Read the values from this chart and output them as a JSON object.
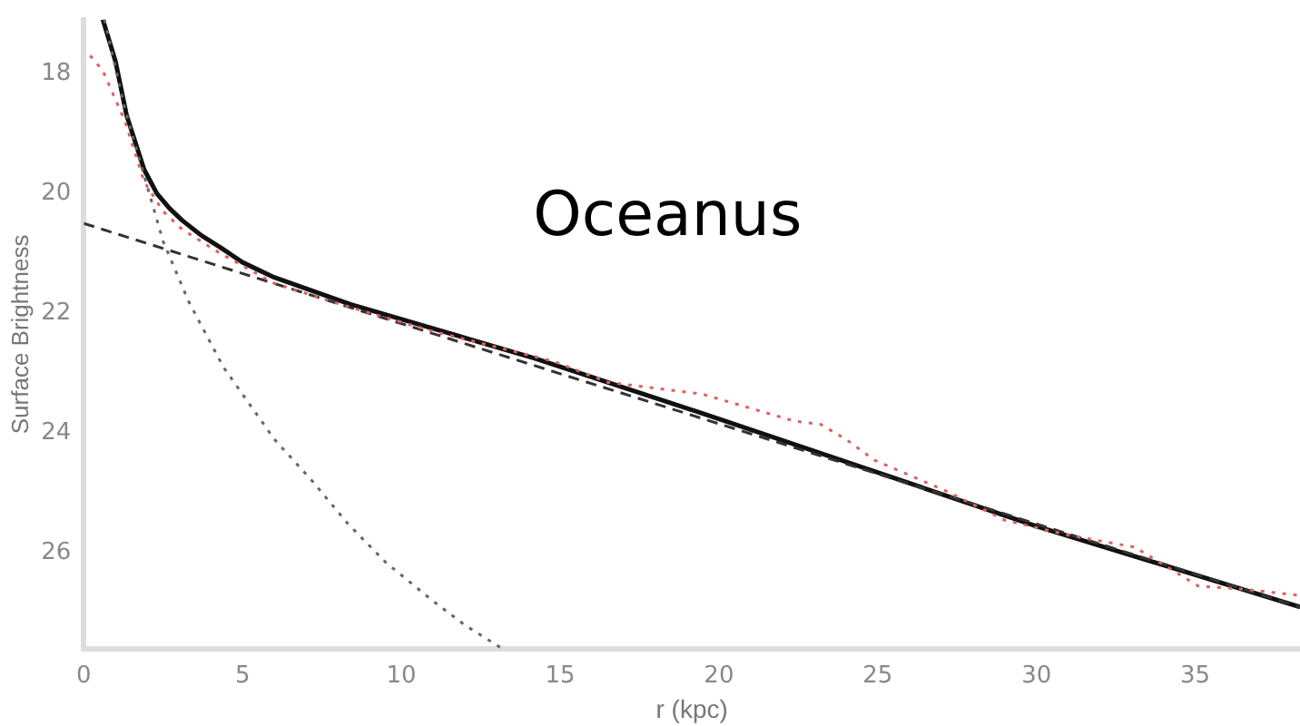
{
  "chart_data": {
    "type": "line",
    "xlabel": "r (kpc)",
    "ylabel": "Surface Brightness",
    "annotations": [
      "Oceanus"
    ],
    "xlim": [
      0,
      38.3
    ],
    "ylim": [
      27.6,
      17.1
    ],
    "xticks": [
      0,
      5,
      10,
      15,
      20,
      25,
      30,
      35
    ],
    "yticks": [
      18,
      20,
      22,
      24,
      26
    ],
    "grid": false,
    "marker": "none",
    "series": [
      {
        "line_style": "dotted",
        "color": "#e06060",
        "x": [
          0.2,
          0.6,
          1.3,
          1.9,
          2.5,
          3.1,
          4.3,
          6.0,
          8.4,
          11,
          14.8,
          16.5,
          19.5,
          22.4,
          23.2,
          24,
          24.9,
          27.1,
          29,
          31,
          33.1,
          35.1,
          36.5,
          38.2
        ],
        "values": [
          17.7,
          17.95,
          18.8,
          19.8,
          20.3,
          20.6,
          21.0,
          21.5,
          21.9,
          22.3,
          22.8,
          23.15,
          23.35,
          23.8,
          23.85,
          24.1,
          24.45,
          24.95,
          25.45,
          25.7,
          25.9,
          26.55,
          26.6,
          26.7
        ]
      },
      {
        "line_style": "dotted",
        "color": "#666666",
        "x": [
          0.65,
          1.3,
          1.9,
          2.5,
          3.3,
          4.4,
          5,
          6,
          7.2,
          8.3,
          9.5,
          11,
          12,
          13.2
        ],
        "values": [
          17.1,
          18.6,
          19.7,
          20.8,
          21.8,
          22.9,
          23.35,
          24.1,
          24.8,
          25.5,
          26.15,
          26.8,
          27.2,
          27.6
        ]
      },
      {
        "line_style": "dashed",
        "color": "#333333",
        "x": [
          0,
          38.3
        ],
        "values": [
          20.5,
          26.9
        ]
      },
      {
        "line_style": "solid",
        "color": "#111111",
        "x": [
          0.6,
          1.0,
          1.35,
          1.9,
          2.3,
          2.7,
          3.1,
          3.7,
          4.3,
          5.0,
          6.0,
          8.4,
          14.2,
          20,
          30,
          38.3
        ],
        "values": [
          17.1,
          17.8,
          18.7,
          19.6,
          20.0,
          20.25,
          20.45,
          20.7,
          20.9,
          21.15,
          21.4,
          21.85,
          22.75,
          23.76,
          25.55,
          26.9
        ]
      }
    ]
  }
}
